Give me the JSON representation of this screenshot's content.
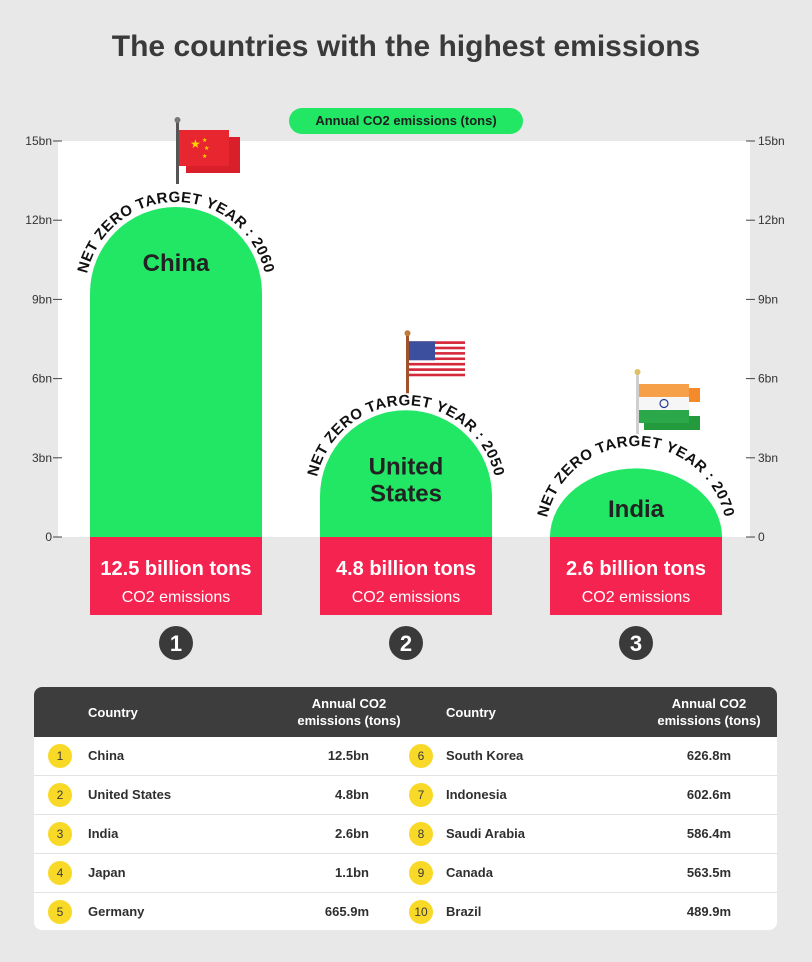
{
  "title": "The countries with the highest emissions",
  "legend_label": "Annual CO2 emissions (tons)",
  "chart_data": {
    "type": "bar",
    "title": "The countries with the highest emissions",
    "series": [
      {
        "name": "Annual CO2 emissions (tons)",
        "values": [
          12.5,
          4.8,
          2.6
        ]
      }
    ],
    "categories": [
      "China",
      "United States",
      "India"
    ],
    "ylim": [
      0,
      15
    ],
    "yticks": [
      "0",
      "3bn",
      "6bn",
      "9bn",
      "12bn",
      "15bn"
    ],
    "ytick_values": [
      0,
      3,
      6,
      9,
      12,
      15
    ],
    "bars": [
      {
        "name": "China",
        "name_lines": [
          "China"
        ],
        "value": 12.5,
        "value_label": "12.5 billion tons",
        "sub_label": "CO2 emissions",
        "target": "NET ZERO TARGET YEAR : 2060",
        "rank": "1",
        "flag": "china-flag-icon"
      },
      {
        "name": "United States",
        "name_lines": [
          "United",
          "States"
        ],
        "value": 4.8,
        "value_label": "4.8 billion tons",
        "sub_label": "CO2 emissions",
        "target": "NET ZERO TARGET YEAR : 2050",
        "rank": "2",
        "flag": "usa-flag-icon"
      },
      {
        "name": "India",
        "name_lines": [
          "India"
        ],
        "value": 2.6,
        "value_label": "2.6 billion tons",
        "sub_label": "CO2 emissions",
        "target": "NET ZERO TARGET YEAR : 2070",
        "rank": "3",
        "flag": "india-flag-icon"
      }
    ],
    "colors": {
      "bar": "#21e765",
      "label_bg": "#f5234f",
      "rank_bg": "#3a3a3a",
      "plot_bg": "#ffffff"
    }
  },
  "table": {
    "headers": {
      "country": "Country",
      "emissions": "Annual CO2 emissions (tons)"
    },
    "left": [
      {
        "rank": "1",
        "country": "China",
        "value": "12.5bn"
      },
      {
        "rank": "2",
        "country": "United States",
        "value": "4.8bn"
      },
      {
        "rank": "3",
        "country": "India",
        "value": "2.6bn"
      },
      {
        "rank": "4",
        "country": "Japan",
        "value": "1.1bn"
      },
      {
        "rank": "5",
        "country": "Germany",
        "value": "665.9m"
      }
    ],
    "right": [
      {
        "rank": "6",
        "country": "South Korea",
        "value": "626.8m"
      },
      {
        "rank": "7",
        "country": "Indonesia",
        "value": "602.6m"
      },
      {
        "rank": "8",
        "country": "Saudi Arabia",
        "value": "586.4m"
      },
      {
        "rank": "9",
        "country": "Canada",
        "value": "563.5m"
      },
      {
        "rank": "10",
        "country": "Brazil",
        "value": "489.9m"
      }
    ]
  }
}
